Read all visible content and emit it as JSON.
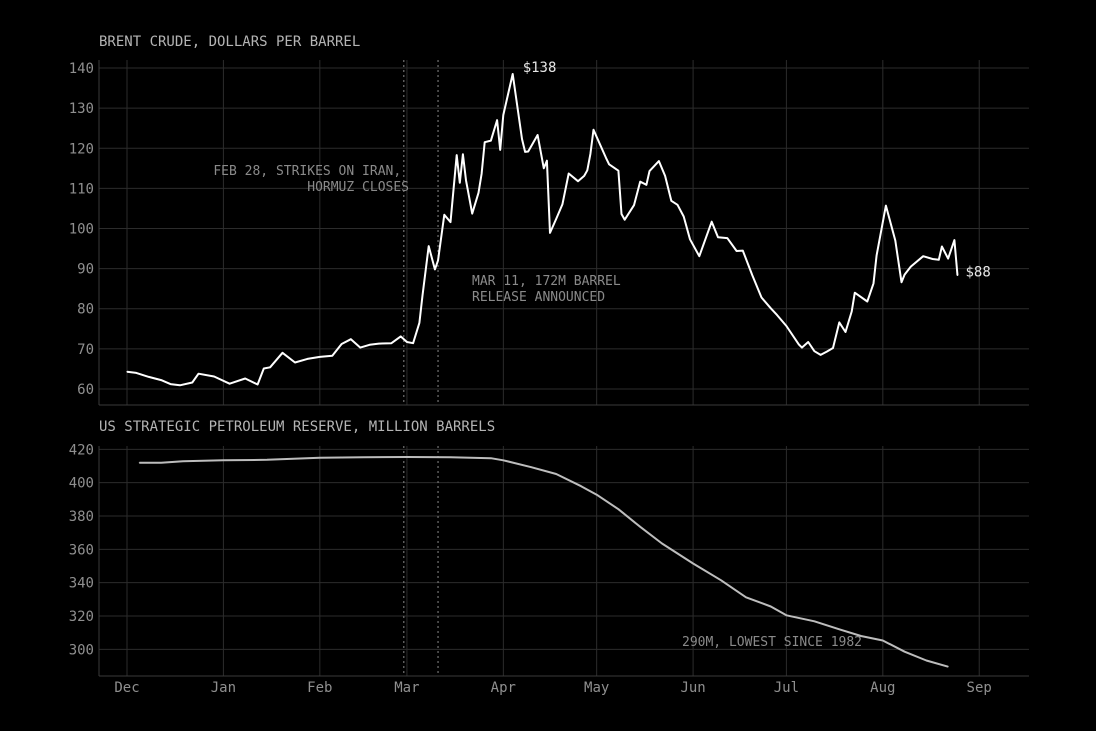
{
  "chart_data": [
    {
      "type": "line",
      "title": "BRENT CRUDE, DOLLARS PER BARREL",
      "ylim": [
        56,
        142
      ],
      "yticks": [
        60,
        70,
        80,
        90,
        100,
        110,
        120,
        130,
        140
      ],
      "grid": true,
      "x_axis": "shared",
      "series": [
        {
          "color": "#ffffff",
          "x": [
            "2025-12-01",
            "2025-12-04",
            "2025-12-08",
            "2025-12-12",
            "2025-12-15",
            "2025-12-18",
            "2025-12-22",
            "2025-12-24",
            "2025-12-29",
            "2026-01-03",
            "2026-01-08",
            "2026-01-12",
            "2026-01-14",
            "2026-01-16",
            "2026-01-20",
            "2026-01-24",
            "2026-01-28",
            "2026-02-01",
            "2026-02-05",
            "2026-02-08",
            "2026-02-11",
            "2026-02-14",
            "2026-02-17",
            "2026-02-20",
            "2026-02-24",
            "2026-02-27",
            "2026-03-01",
            "2026-03-03",
            "2026-03-05",
            "2026-03-06",
            "2026-03-08",
            "2026-03-10",
            "2026-03-11",
            "2026-03-13",
            "2026-03-15",
            "2026-03-17",
            "2026-03-18",
            "2026-03-19",
            "2026-03-20",
            "2026-03-22",
            "2026-03-24",
            "2026-03-25",
            "2026-03-26",
            "2026-03-28",
            "2026-03-30",
            "2026-03-31",
            "2026-04-01",
            "2026-04-04",
            "2026-04-07",
            "2026-04-08",
            "2026-04-09",
            "2026-04-12",
            "2026-04-14",
            "2026-04-15",
            "2026-04-16",
            "2026-04-18",
            "2026-04-20",
            "2026-04-22",
            "2026-04-25",
            "2026-04-27",
            "2026-04-28",
            "2026-04-29",
            "2026-04-30",
            "2026-05-04",
            "2026-05-05",
            "2026-05-08",
            "2026-05-09",
            "2026-05-10",
            "2026-05-13",
            "2026-05-15",
            "2026-05-17",
            "2026-05-18",
            "2026-05-21",
            "2026-05-23",
            "2026-05-25",
            "2026-05-27",
            "2026-05-29",
            "2026-05-31",
            "2026-06-03",
            "2026-06-07",
            "2026-06-09",
            "2026-06-12",
            "2026-06-15",
            "2026-06-17",
            "2026-06-20",
            "2026-06-23",
            "2026-06-26",
            "2026-06-28",
            "2026-07-01",
            "2026-07-05",
            "2026-07-06",
            "2026-07-08",
            "2026-07-10",
            "2026-07-12",
            "2026-07-14",
            "2026-07-16",
            "2026-07-18",
            "2026-07-20",
            "2026-07-22",
            "2026-07-23",
            "2026-07-27",
            "2026-07-29",
            "2026-07-30",
            "2026-08-02",
            "2026-08-05",
            "2026-08-07",
            "2026-08-08",
            "2026-08-10",
            "2026-08-14",
            "2026-08-17",
            "2026-08-19",
            "2026-08-20",
            "2026-08-22",
            "2026-08-24",
            "2026-08-25"
          ],
          "y": [
            64.3,
            64.0,
            63.0,
            62.2,
            61.2,
            60.9,
            61.6,
            63.8,
            63.1,
            61.3,
            62.6,
            61.1,
            65.1,
            65.4,
            69.0,
            66.6,
            67.5,
            68.0,
            68.3,
            71.2,
            72.4,
            70.3,
            71.0,
            71.3,
            71.4,
            73.1,
            71.7,
            71.4,
            76.5,
            83.3,
            95.6,
            89.8,
            92.0,
            103.4,
            101.6,
            118.3,
            111.4,
            118.5,
            112.0,
            103.7,
            108.9,
            113.6,
            121.5,
            121.9,
            127.0,
            119.6,
            128.3,
            138.5,
            122.3,
            119.1,
            119.2,
            123.3,
            115.0,
            116.9,
            98.9,
            102.4,
            106.0,
            113.7,
            111.8,
            113.1,
            114.5,
            118.6,
            124.6,
            117.6,
            116.0,
            114.4,
            103.6,
            102.2,
            105.8,
            111.7,
            110.9,
            114.3,
            116.8,
            113.1,
            106.9,
            105.9,
            103.0,
            97.3,
            93.1,
            101.7,
            97.8,
            97.6,
            94.4,
            94.5,
            88.4,
            82.8,
            80.1,
            78.4,
            75.7,
            71.1,
            70.3,
            71.7,
            69.4,
            68.5,
            69.3,
            70.2,
            76.6,
            74.2,
            79.3,
            84.0,
            81.8,
            86.3,
            93.3,
            105.7,
            97.0,
            86.6,
            88.5,
            90.5,
            93.1,
            92.4,
            92.2,
            95.5,
            92.5,
            97.1,
            88.3
          ]
        }
      ],
      "annotations": [
        {
          "label": "$138",
          "x": "2026-04-04",
          "y": 138.5
        },
        {
          "label": "$88",
          "x": "2026-08-25",
          "y": 88.3
        },
        {
          "lines": [
            "FEB 28, STRIKES ON IRAN,",
            "HORMUZ CLOSES"
          ]
        },
        {
          "lines": [
            "MAR 11, 172M BARREL",
            "RELEASE ANNOUNCED"
          ]
        }
      ]
    },
    {
      "type": "line",
      "title": "US STRATEGIC PETROLEUM RESERVE, MILLION BARRELS",
      "ylim": [
        284,
        422
      ],
      "yticks": [
        300,
        320,
        340,
        360,
        380,
        400,
        420
      ],
      "grid": true,
      "x_axis": "shared",
      "series": [
        {
          "color": "#bdbdbd",
          "x": [
            "2025-12-05",
            "2025-12-12",
            "2025-12-19",
            "2026-01-01",
            "2026-01-15",
            "2026-02-01",
            "2026-02-15",
            "2026-03-01",
            "2026-03-15",
            "2026-03-28",
            "2026-04-01",
            "2026-04-10",
            "2026-04-18",
            "2026-04-26",
            "2026-05-01",
            "2026-05-08",
            "2026-05-15",
            "2026-05-22",
            "2026-06-01",
            "2026-06-10",
            "2026-06-18",
            "2026-06-26",
            "2026-07-01",
            "2026-07-10",
            "2026-07-18",
            "2026-07-25",
            "2026-08-01",
            "2026-08-08",
            "2026-08-15",
            "2026-08-22"
          ],
          "y": [
            411.9,
            412.0,
            412.9,
            413.4,
            413.7,
            415.0,
            415.2,
            415.4,
            415.3,
            414.7,
            413.4,
            409.3,
            405.2,
            397.9,
            392.8,
            384.1,
            373.5,
            363.5,
            351.5,
            341.4,
            331.2,
            325.7,
            320.4,
            316.8,
            312.0,
            308.0,
            305.3,
            298.6,
            293.3,
            289.6
          ]
        }
      ],
      "annotations": [
        {
          "label": "290M, LOWEST SINCE 1982"
        }
      ]
    }
  ],
  "x_axis": {
    "type": "date",
    "xlim": [
      "2025-11-22",
      "2026-09-17"
    ],
    "tick_labels": [
      "Dec",
      "Jan",
      "Feb",
      "Mar",
      "Apr",
      "May",
      "Jun",
      "Jul",
      "Aug",
      "Sep"
    ],
    "tick_dates": [
      "2025-12-01",
      "2026-01-01",
      "2026-02-01",
      "2026-03-01",
      "2026-04-01",
      "2026-05-01",
      "2026-06-01",
      "2026-07-01",
      "2026-08-01",
      "2026-09-01"
    ]
  },
  "events": [
    {
      "date": "2026-02-28"
    },
    {
      "date": "2026-03-11"
    }
  ]
}
